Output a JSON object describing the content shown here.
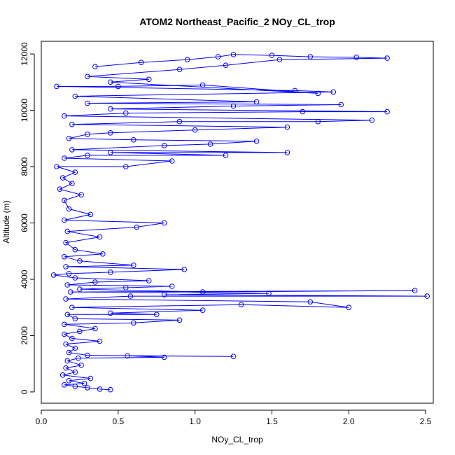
{
  "chart_data": {
    "type": "line",
    "title": "ATOM2 Northeast_Pacific_2 NOy_CL_trop",
    "xlabel": "NOy_CL_trop",
    "ylabel": "Altitude (m)",
    "xlim": [
      0.0,
      2.55
    ],
    "ylim": [
      -400,
      12450
    ],
    "x_ticks": [
      "0.0",
      "0.5",
      "1.0",
      "1.5",
      "2.0",
      "2.5"
    ],
    "y_ticks": [
      "0",
      "2000",
      "4000",
      "6000",
      "8000",
      "10000",
      "12000"
    ],
    "grid": false,
    "legend": "none",
    "series": [
      {
        "color": "#0000ff",
        "marker": "open-circle",
        "points": [
          [
            0.45,
            80
          ],
          [
            0.38,
            100
          ],
          [
            0.3,
            150
          ],
          [
            0.22,
            200
          ],
          [
            0.15,
            250
          ],
          [
            0.28,
            300
          ],
          [
            0.18,
            400
          ],
          [
            0.32,
            480
          ],
          [
            0.14,
            600
          ],
          [
            0.22,
            700
          ],
          [
            0.16,
            850
          ],
          [
            0.26,
            950
          ],
          [
            0.17,
            1100
          ],
          [
            0.24,
            1200
          ],
          [
            0.8,
            1230
          ],
          [
            0.56,
            1280
          ],
          [
            1.25,
            1260
          ],
          [
            0.3,
            1300
          ],
          [
            0.18,
            1400
          ],
          [
            0.22,
            1550
          ],
          [
            0.16,
            1700
          ],
          [
            0.38,
            1800
          ],
          [
            0.2,
            1900
          ],
          [
            0.15,
            2050
          ],
          [
            0.25,
            2150
          ],
          [
            0.35,
            2250
          ],
          [
            0.15,
            2400
          ],
          [
            0.6,
            2450
          ],
          [
            0.9,
            2550
          ],
          [
            0.22,
            2600
          ],
          [
            0.17,
            2750
          ],
          [
            0.75,
            2750
          ],
          [
            0.45,
            2800
          ],
          [
            1.05,
            2900
          ],
          [
            0.2,
            3000
          ],
          [
            1.3,
            3100
          ],
          [
            2.0,
            3000
          ],
          [
            1.75,
            3200
          ],
          [
            0.16,
            3300
          ],
          [
            0.58,
            3400
          ],
          [
            2.51,
            3400
          ],
          [
            0.8,
            3450
          ],
          [
            1.48,
            3500
          ],
          [
            0.19,
            3550
          ],
          [
            2.43,
            3600
          ],
          [
            1.05,
            3550
          ],
          [
            0.25,
            3650
          ],
          [
            0.55,
            3700
          ],
          [
            0.85,
            3750
          ],
          [
            0.17,
            3800
          ],
          [
            0.35,
            3900
          ],
          [
            0.7,
            3950
          ],
          [
            0.22,
            4050
          ],
          [
            0.08,
            4150
          ],
          [
            0.18,
            4200
          ],
          [
            0.45,
            4250
          ],
          [
            0.93,
            4350
          ],
          [
            0.16,
            4450
          ],
          [
            0.6,
            4500
          ],
          [
            0.25,
            4650
          ],
          [
            0.15,
            4800
          ],
          [
            0.4,
            4900
          ],
          [
            0.22,
            5050
          ],
          [
            0.16,
            5300
          ],
          [
            0.38,
            5500
          ],
          [
            0.17,
            5700
          ],
          [
            0.62,
            5850
          ],
          [
            0.8,
            6000
          ],
          [
            0.15,
            6100
          ],
          [
            0.32,
            6300
          ],
          [
            0.18,
            6500
          ],
          [
            0.15,
            6800
          ],
          [
            0.26,
            7000
          ],
          [
            0.12,
            7200
          ],
          [
            0.2,
            7400
          ],
          [
            0.14,
            7600
          ],
          [
            0.22,
            7800
          ],
          [
            0.1,
            8000
          ],
          [
            0.55,
            8000
          ],
          [
            0.85,
            8200
          ],
          [
            0.15,
            8300
          ],
          [
            0.3,
            8400
          ],
          [
            1.2,
            8400
          ],
          [
            0.45,
            8500
          ],
          [
            1.6,
            8500
          ],
          [
            0.2,
            8600
          ],
          [
            0.8,
            8750
          ],
          [
            1.1,
            8800
          ],
          [
            1.4,
            8900
          ],
          [
            0.6,
            8950
          ],
          [
            0.18,
            9000
          ],
          [
            0.3,
            9150
          ],
          [
            0.45,
            9200
          ],
          [
            1.0,
            9300
          ],
          [
            1.6,
            9400
          ],
          [
            0.2,
            9500
          ],
          [
            0.9,
            9600
          ],
          [
            1.8,
            9600
          ],
          [
            2.15,
            9650
          ],
          [
            0.15,
            9800
          ],
          [
            0.55,
            9900
          ],
          [
            1.7,
            9950
          ],
          [
            2.25,
            9950
          ],
          [
            0.45,
            10050
          ],
          [
            1.25,
            10150
          ],
          [
            1.95,
            10200
          ],
          [
            0.3,
            10250
          ],
          [
            1.4,
            10300
          ],
          [
            0.22,
            10500
          ],
          [
            1.9,
            10650
          ],
          [
            1.65,
            10700
          ],
          [
            0.1,
            10850
          ],
          [
            0.5,
            10850
          ],
          [
            1.05,
            10900
          ],
          [
            1.8,
            10600
          ],
          [
            0.45,
            11000
          ],
          [
            0.7,
            11100
          ],
          [
            0.3,
            11200
          ],
          [
            0.9,
            11450
          ],
          [
            1.2,
            11600
          ],
          [
            1.55,
            11800
          ],
          [
            2.25,
            11850
          ],
          [
            2.05,
            11880
          ],
          [
            1.75,
            11900
          ],
          [
            1.5,
            11950
          ],
          [
            1.25,
            11980
          ],
          [
            1.15,
            11900
          ],
          [
            0.95,
            11800
          ],
          [
            0.65,
            11700
          ],
          [
            0.35,
            11550
          ]
        ]
      }
    ]
  }
}
